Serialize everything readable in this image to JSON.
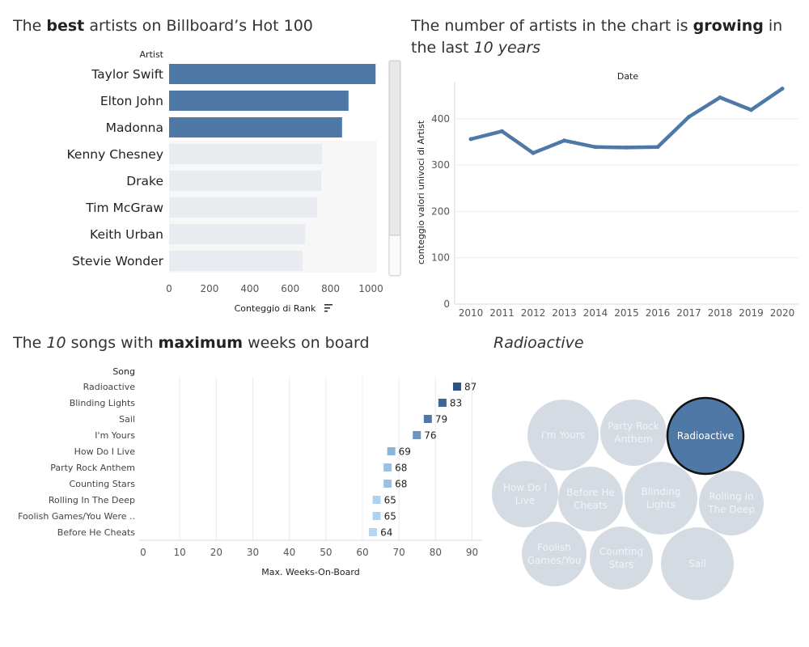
{
  "panel1": {
    "title_pre": "The ",
    "title_bold": "best",
    "title_post": " artists on Billboard’s Hot 100"
  },
  "panel2": {
    "title_pre": "The number of artists in the chart is ",
    "title_bold": "growing",
    "title_mid": " in the last ",
    "title_italic": "10 years"
  },
  "panel3": {
    "title_pre": "The ",
    "title_italic": "10",
    "title_mid": " songs with ",
    "title_bold": "maximum",
    "title_post": " weeks on board"
  },
  "panel4": {
    "title_italic": "Radioactive"
  },
  "chart_data": [
    {
      "type": "bar",
      "orientation": "horizontal",
      "header": "Artist",
      "xlabel": "Conteggio di Rank",
      "xlim": [
        0,
        1030
      ],
      "xticks": [
        0,
        200,
        400,
        600,
        800,
        1000
      ],
      "categories": [
        "Taylor Swift",
        "Elton John",
        "Madonna",
        "Kenny Chesney",
        "Drake",
        "Tim McGraw",
        "Keith Urban",
        "Stevie Wonder"
      ],
      "values": [
        1023,
        889,
        857,
        758,
        754,
        733,
        674,
        661
      ],
      "highlighted": [
        true,
        true,
        true,
        false,
        false,
        false,
        false,
        false
      ],
      "colors": {
        "highlight": "#4e79a7",
        "muted": "#e8ebf0",
        "background": "#f7f7f7"
      }
    },
    {
      "type": "line",
      "header": "Date",
      "ylabel": "conteggio valori univoci di Artist",
      "x": [
        2010,
        2011,
        2012,
        2013,
        2014,
        2015,
        2016,
        2017,
        2018,
        2019,
        2020
      ],
      "values": [
        356,
        373,
        326,
        353,
        339,
        338,
        339,
        404,
        446,
        419,
        465
      ],
      "ylim": [
        0,
        480
      ],
      "yticks": [
        0,
        100,
        200,
        300,
        400
      ],
      "grid": true,
      "colors": {
        "line": "#4e79a7"
      }
    },
    {
      "type": "bar",
      "orientation": "horizontal",
      "header": "Song",
      "xlabel": "Max. Weeks-On-Board",
      "xlim": [
        0,
        92
      ],
      "xticks": [
        0,
        10,
        20,
        30,
        40,
        50,
        60,
        70,
        80,
        90
      ],
      "categories": [
        "Radioactive",
        "Blinding Lights",
        "Sail",
        "I'm Yours",
        "How Do I Live",
        "Party Rock Anthem",
        "Counting Stars",
        "Rolling In The Deep",
        "Foolish Games/You Were ..",
        "Before He Cheats"
      ],
      "values": [
        87,
        83,
        79,
        76,
        69,
        68,
        68,
        65,
        65,
        64
      ],
      "data_labels": [
        "87",
        "83",
        "79",
        "76",
        "69",
        "68",
        "68",
        "65",
        "65",
        "64"
      ],
      "colors": {
        "87": "#2c5283",
        "83": "#3d6799",
        "79": "#4e79a7",
        "76": "#6b94c0",
        "69": "#8ab4dc",
        "68": "#9ac0e3",
        "65": "#afd2ee",
        "64": "#b5d6f1"
      }
    },
    {
      "type": "bubble",
      "bubbles": [
        {
          "label": "I'm Yours",
          "value": 76,
          "highlighted": false
        },
        {
          "label": "Party Rock Anthem",
          "value": 68,
          "highlighted": false
        },
        {
          "label": "Radioactive",
          "value": 87,
          "highlighted": true
        },
        {
          "label": "How Do I Live",
          "value": 69,
          "highlighted": false
        },
        {
          "label": "Before He Cheats",
          "value": 64,
          "highlighted": false
        },
        {
          "label": "Blinding Lights",
          "value": 83,
          "highlighted": false
        },
        {
          "label": "Rolling In The Deep",
          "value": 65,
          "highlighted": false
        },
        {
          "label": "Foolish Games/You",
          "value": 65,
          "highlighted": false
        },
        {
          "label": "Counting Stars",
          "value": 68,
          "highlighted": false
        },
        {
          "label": "Sail",
          "value": 79,
          "highlighted": false
        }
      ],
      "colors": {
        "highlight": "#4e79a7",
        "muted": "#d5dbe3",
        "muted_text": "#f2f4f7"
      }
    }
  ]
}
